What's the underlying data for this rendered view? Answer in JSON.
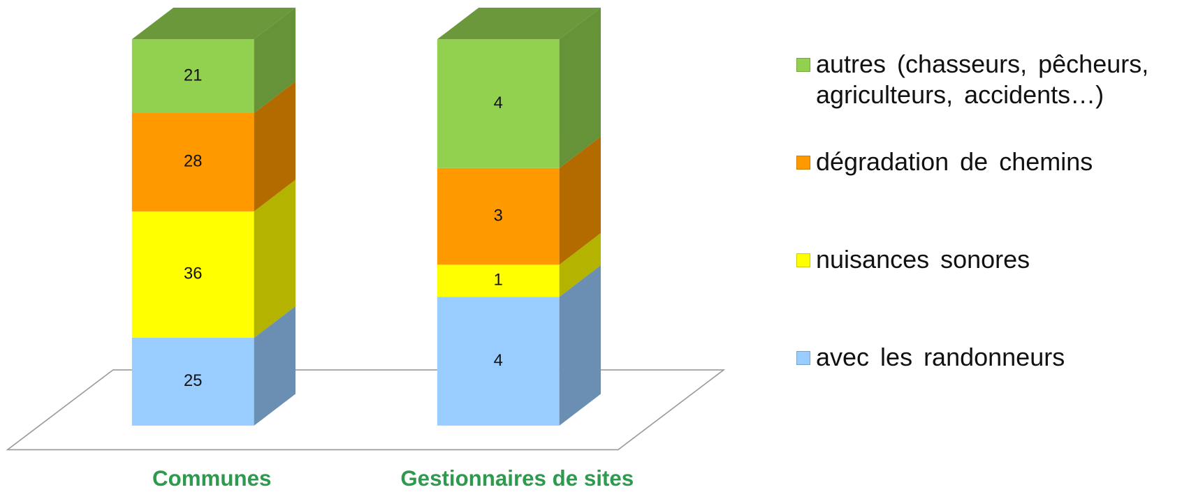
{
  "chart_data": {
    "type": "bar",
    "stacked": "percent",
    "categories": [
      "Communes",
      "Gestionnaires de sites"
    ],
    "series": [
      {
        "name": "avec les randonneurs",
        "color": "#99ccff",
        "values": [
          25,
          4
        ]
      },
      {
        "name": "nuisances sonores",
        "color": "#ffff00",
        "values": [
          36,
          1
        ]
      },
      {
        "name": "dégradation de chemins",
        "color": "#ff9900",
        "values": [
          28,
          3
        ]
      },
      {
        "name": "autres (chasseurs, pêcheurs, agriculteurs, accidents…)",
        "color": "#92d050",
        "values": [
          21,
          4
        ]
      }
    ],
    "category_label_color": "#2e9a4e"
  }
}
